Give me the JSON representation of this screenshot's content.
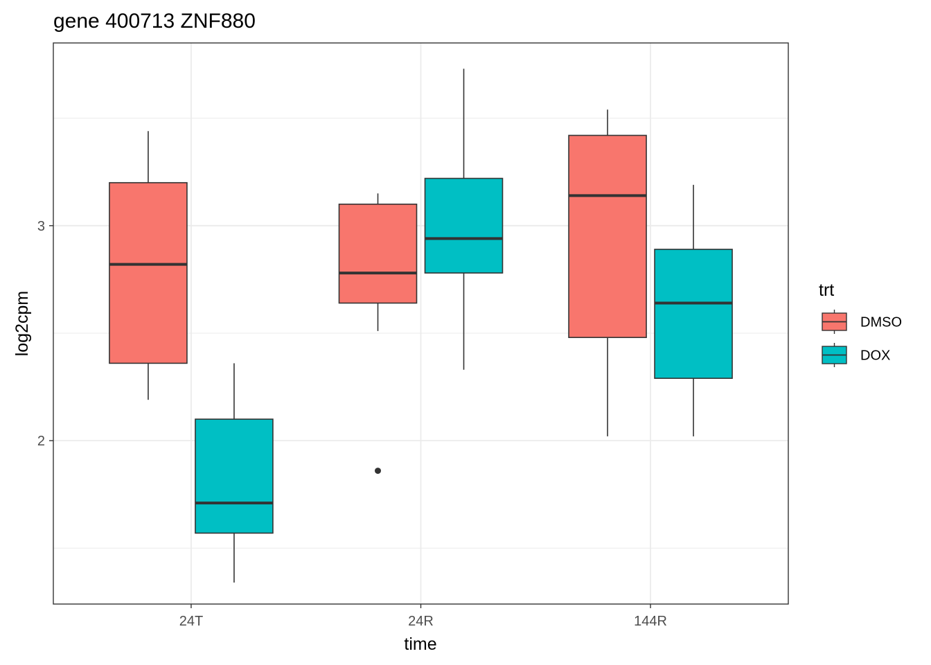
{
  "chart_data": {
    "type": "boxplot",
    "title": "gene 400713 ZNF880",
    "xlabel": "time",
    "ylabel": "log2cpm",
    "categories": [
      "24T",
      "24R",
      "144R"
    ],
    "y_ticks": [
      2,
      3
    ],
    "ylim": [
      1.24,
      3.85
    ],
    "grid": true,
    "legend": {
      "title": "trt",
      "position": "right",
      "entries": [
        {
          "name": "DMSO",
          "color": "#f8766d"
        },
        {
          "name": "DOX",
          "color": "#00bfc4"
        }
      ]
    },
    "series": [
      {
        "name": "DMSO",
        "color": "#f8766d",
        "boxes": [
          {
            "category": "24T",
            "whisker_low": 2.19,
            "q1": 2.36,
            "median": 2.82,
            "q3": 3.2,
            "whisker_high": 3.44,
            "outliers": []
          },
          {
            "category": "24R",
            "whisker_low": 2.51,
            "q1": 2.64,
            "median": 2.78,
            "q3": 3.1,
            "whisker_high": 3.15,
            "outliers": [
              1.86
            ]
          },
          {
            "category": "144R",
            "whisker_low": 2.02,
            "q1": 2.48,
            "median": 3.14,
            "q3": 3.42,
            "whisker_high": 3.54,
            "outliers": []
          }
        ]
      },
      {
        "name": "DOX",
        "color": "#00bfc4",
        "boxes": [
          {
            "category": "24T",
            "whisker_low": 1.34,
            "q1": 1.57,
            "median": 1.71,
            "q3": 2.1,
            "whisker_high": 2.36,
            "outliers": []
          },
          {
            "category": "24R",
            "whisker_low": 2.33,
            "q1": 2.78,
            "median": 2.94,
            "q3": 3.22,
            "whisker_high": 3.73,
            "outliers": []
          },
          {
            "category": "144R",
            "whisker_low": 2.02,
            "q1": 2.29,
            "median": 2.64,
            "q3": 2.89,
            "whisker_high": 3.19,
            "outliers": []
          }
        ]
      }
    ]
  }
}
